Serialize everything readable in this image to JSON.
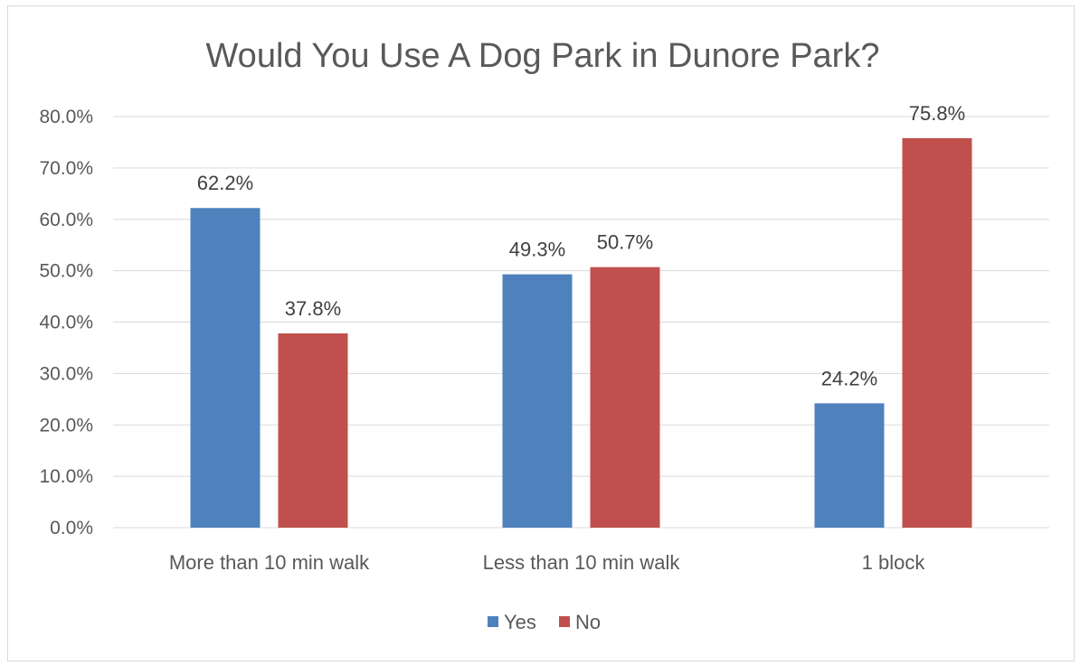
{
  "chart_data": {
    "type": "bar",
    "title": "Would You Use A Dog Park in Dunore Park?",
    "categories": [
      "More than 10 min walk",
      "Less than 10 min walk",
      "1 block"
    ],
    "series": [
      {
        "name": "Yes",
        "color": "#4f81bd",
        "values": [
          62.2,
          49.3,
          24.2
        ],
        "labels": [
          "62.2%",
          "49.3%",
          "24.2%"
        ]
      },
      {
        "name": "No",
        "color": "#c0504d",
        "values": [
          37.8,
          50.7,
          75.8
        ],
        "labels": [
          "37.8%",
          "50.7%",
          "75.8%"
        ]
      }
    ],
    "yticks": [
      "0.0%",
      "10.0%",
      "20.0%",
      "30.0%",
      "40.0%",
      "50.0%",
      "60.0%",
      "70.0%",
      "80.0%"
    ],
    "ylim": [
      0,
      80
    ],
    "grid": true,
    "legend_position": "bottom"
  }
}
